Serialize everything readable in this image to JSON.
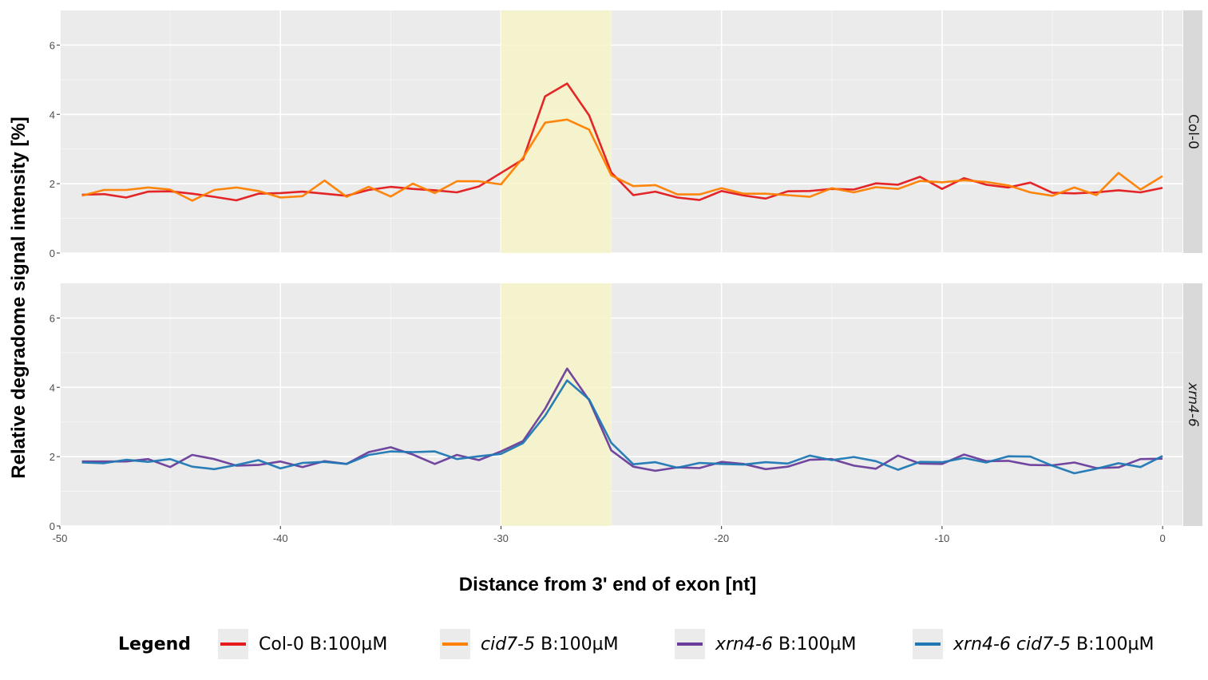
{
  "chart_data": {
    "type": "line",
    "xlabel": "Distance from 3' end of exon [nt]",
    "ylabel": "Relative degradome signal intensity [%]",
    "xlim": [
      -50,
      0.9
    ],
    "ylim": [
      0,
      7
    ],
    "x_ticks": [
      -50,
      -40,
      -30,
      -20,
      -10,
      0
    ],
    "y_ticks": [
      0,
      2,
      4,
      6
    ],
    "highlight_band": {
      "x0": -30,
      "x1": -25,
      "color": "#f7f4c8"
    },
    "grid": true,
    "legend": {
      "title": "Legend",
      "position": "bottom",
      "entries": [
        {
          "key": "col0",
          "color": "#e41a1c",
          "italic": "",
          "rest": "Col-0 B:100µM"
        },
        {
          "key": "cid7",
          "color": "#ff7f00",
          "italic": "cid7-5",
          "rest": " B:100µM"
        },
        {
          "key": "xrn4",
          "color": "#6a3d9a",
          "italic": "xrn4-6",
          "rest": " B:100µM"
        },
        {
          "key": "xrncid",
          "color": "#1f78b4",
          "italic": "xrn4-6 cid7-5",
          "rest": " B:100µM"
        }
      ]
    },
    "x": [
      -49,
      -48,
      -47,
      -46,
      -45,
      -44,
      -43,
      -42,
      -41,
      -40,
      -39,
      -38,
      -37,
      -36,
      -35,
      -34,
      -33,
      -32,
      -31,
      -30,
      -29,
      -28,
      -27,
      -26,
      -25,
      -24,
      -23,
      -22,
      -21,
      -20,
      -19,
      -18,
      -17,
      -16,
      -15,
      -14,
      -13,
      -12,
      -11,
      -10,
      -9,
      -8,
      -7,
      -6,
      -5,
      -4,
      -3,
      -2,
      -1,
      0
    ],
    "panels": [
      {
        "strip": "Col-0",
        "series": [
          {
            "key": "col0",
            "color": "#e41a1c",
            "values": [
              1.68,
              1.7,
              1.6,
              1.77,
              1.78,
              1.71,
              1.62,
              1.52,
              1.71,
              1.73,
              1.77,
              1.71,
              1.65,
              1.82,
              1.91,
              1.85,
              1.81,
              1.75,
              1.92,
              2.31,
              2.7,
              4.52,
              4.89,
              3.97,
              2.32,
              1.67,
              1.77,
              1.6,
              1.53,
              1.79,
              1.66,
              1.57,
              1.78,
              1.79,
              1.85,
              1.83,
              2.01,
              1.97,
              2.2,
              1.85,
              2.16,
              1.97,
              1.89,
              2.03,
              1.74,
              1.72,
              1.75,
              1.81,
              1.75,
              1.88
            ]
          },
          {
            "key": "cid7",
            "color": "#ff7f00",
            "values": [
              1.65,
              1.82,
              1.82,
              1.89,
              1.83,
              1.51,
              1.82,
              1.89,
              1.79,
              1.6,
              1.64,
              2.09,
              1.62,
              1.91,
              1.63,
              2.0,
              1.73,
              2.07,
              2.07,
              1.98,
              2.75,
              3.76,
              3.85,
              3.56,
              2.24,
              1.93,
              1.96,
              1.69,
              1.69,
              1.87,
              1.71,
              1.71,
              1.67,
              1.62,
              1.87,
              1.75,
              1.9,
              1.85,
              2.08,
              2.04,
              2.1,
              2.05,
              1.95,
              1.75,
              1.65,
              1.89,
              1.67,
              2.31,
              1.83,
              2.22
            ]
          }
        ]
      },
      {
        "strip": "xrn4-6",
        "series": [
          {
            "key": "xrn4",
            "color": "#6a3d9a",
            "values": [
              1.86,
              1.86,
              1.86,
              1.93,
              1.7,
              2.05,
              1.93,
              1.74,
              1.76,
              1.86,
              1.7,
              1.87,
              1.79,
              2.13,
              2.27,
              2.06,
              1.79,
              2.05,
              1.9,
              2.15,
              2.45,
              3.38,
              4.54,
              3.63,
              2.18,
              1.71,
              1.59,
              1.69,
              1.67,
              1.85,
              1.79,
              1.64,
              1.71,
              1.91,
              1.93,
              1.74,
              1.65,
              2.03,
              1.8,
              1.79,
              2.06,
              1.87,
              1.88,
              1.76,
              1.75,
              1.83,
              1.67,
              1.69,
              1.93,
              1.94
            ]
          },
          {
            "key": "xrncid",
            "color": "#1f78b4",
            "values": [
              1.83,
              1.81,
              1.91,
              1.85,
              1.93,
              1.71,
              1.64,
              1.76,
              1.9,
              1.66,
              1.82,
              1.85,
              1.79,
              2.05,
              2.15,
              2.13,
              2.15,
              1.93,
              2.01,
              2.08,
              2.39,
              3.18,
              4.2,
              3.65,
              2.4,
              1.78,
              1.84,
              1.68,
              1.82,
              1.79,
              1.77,
              1.84,
              1.8,
              2.03,
              1.9,
              1.99,
              1.87,
              1.62,
              1.85,
              1.84,
              1.96,
              1.83,
              2.01,
              2.0,
              1.74,
              1.52,
              1.65,
              1.81,
              1.7,
              2.02
            ]
          }
        ]
      }
    ]
  }
}
